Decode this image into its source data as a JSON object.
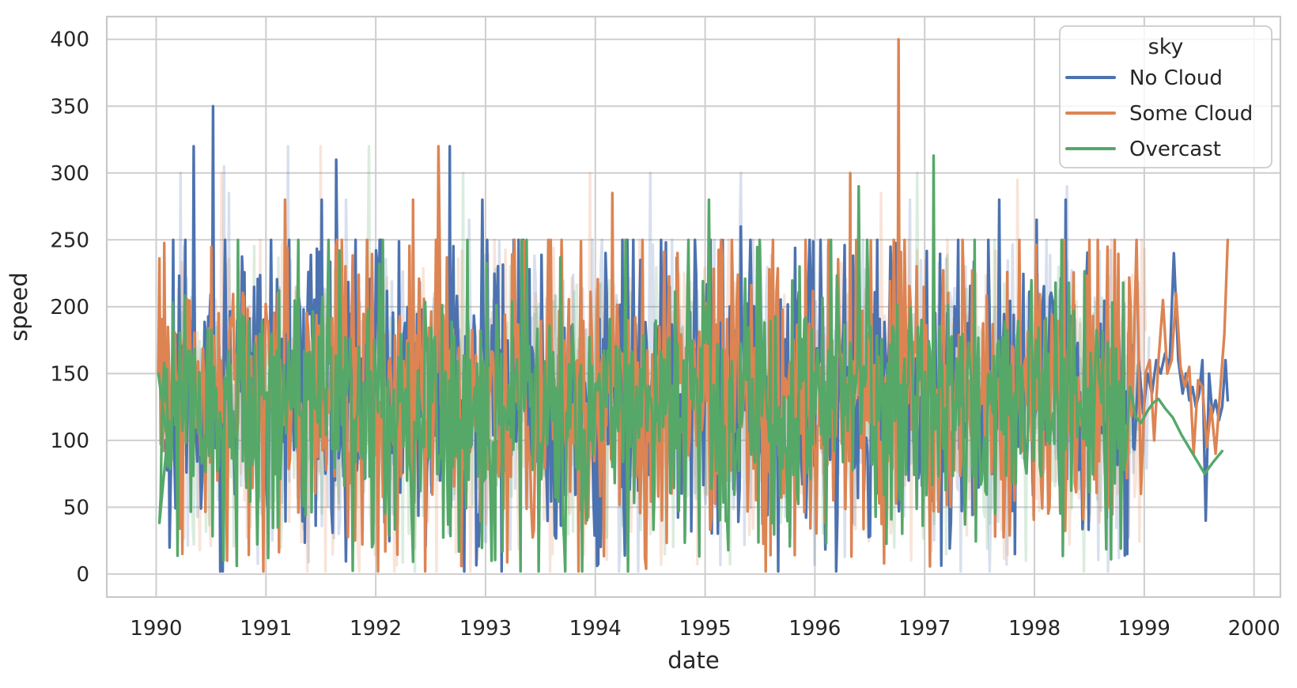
{
  "chart_data": {
    "type": "line",
    "title": "",
    "xlabel": "date",
    "ylabel": "speed",
    "xlim": [
      1989.55,
      2000.24
    ],
    "ylim": [
      -17.2,
      417
    ],
    "xticks": [
      1990,
      1991,
      1992,
      1993,
      1994,
      1995,
      1996,
      1997,
      1998,
      1999,
      2000
    ],
    "yticks": [
      0,
      50,
      100,
      150,
      200,
      250,
      300,
      350,
      400
    ],
    "grid": true,
    "grid_color": "#cecece",
    "spine_color": "#c9c9c9",
    "text_color": "#262626",
    "background": "#ffffff",
    "clip_ceiling": 250,
    "sample_step_years": 0.011,
    "legend": {
      "title": "sky",
      "position": "upper right",
      "entries": [
        {
          "label": "No Cloud",
          "color": "#4c72b0"
        },
        {
          "label": "Some Cloud",
          "color": "#dd8452"
        },
        {
          "label": "Overcast",
          "color": "#55a868"
        }
      ]
    },
    "series": [
      {
        "name": "No Cloud",
        "color": "#4c72b0",
        "opacity": 1,
        "seed": 11,
        "dense_start": 1990.1,
        "dense_end": 1998.92,
        "mean": 139,
        "std": 54,
        "p_low_dip": 0.025,
        "low_dip_range": [
          5,
          55
        ],
        "head": [
          [
            1990.08,
            100
          ]
        ],
        "spikes": [
          [
            1990.16,
            250
          ],
          [
            1990.34,
            320
          ],
          [
            1990.52,
            350
          ],
          [
            1991.51,
            280
          ],
          [
            1991.64,
            310
          ],
          [
            1992.67,
            320
          ],
          [
            1992.97,
            280
          ],
          [
            1993.02,
            250
          ],
          [
            1994.35,
            250
          ],
          [
            1994.6,
            250
          ],
          [
            1995.32,
            260
          ],
          [
            1995.95,
            250
          ],
          [
            1996.05,
            250
          ],
          [
            1997.3,
            250
          ],
          [
            1997.68,
            280
          ],
          [
            1997.82,
            15
          ],
          [
            1998.02,
            265
          ],
          [
            1998.28,
            280
          ],
          [
            1998.85,
            15
          ]
        ],
        "tail": [
          [
            1998.95,
            160
          ],
          [
            1998.99,
            120
          ],
          [
            1999.03,
            150
          ],
          [
            1999.07,
            135
          ],
          [
            1999.11,
            160
          ],
          [
            1999.15,
            150
          ],
          [
            1999.19,
            165
          ],
          [
            1999.23,
            155
          ],
          [
            1999.27,
            240
          ],
          [
            1999.31,
            160
          ],
          [
            1999.35,
            135
          ],
          [
            1999.38,
            150
          ],
          [
            1999.41,
            130
          ],
          [
            1999.44,
            140
          ],
          [
            1999.47,
            125
          ],
          [
            1999.5,
            135
          ],
          [
            1999.53,
            160
          ],
          [
            1999.56,
            40
          ],
          [
            1999.59,
            150
          ],
          [
            1999.62,
            120
          ],
          [
            1999.65,
            130
          ],
          [
            1999.68,
            115
          ],
          [
            1999.71,
            125
          ],
          [
            1999.74,
            160
          ],
          [
            1999.76,
            130
          ]
        ]
      },
      {
        "name": "Some Cloud",
        "color": "#dd8452",
        "opacity": 1,
        "seed": 23,
        "dense_start": 1990.03,
        "dense_end": 1998.9,
        "mean": 133,
        "std": 52,
        "p_low_dip": 0.025,
        "low_dip_range": [
          5,
          55
        ],
        "head": [
          [
            1990.02,
            150
          ]
        ],
        "spikes": [
          [
            1991.17,
            280
          ],
          [
            1992.02,
            2
          ],
          [
            1992.34,
            280
          ],
          [
            1992.57,
            320
          ],
          [
            1992.78,
            6
          ],
          [
            1994.16,
            285
          ],
          [
            1994.45,
            12
          ],
          [
            1995.15,
            250
          ],
          [
            1996.32,
            300
          ],
          [
            1996.72,
            250
          ],
          [
            1996.76,
            400
          ],
          [
            1996.82,
            250
          ],
          [
            1997.35,
            250
          ],
          [
            1998.5,
            250
          ],
          [
            1998.58,
            250
          ]
        ],
        "tail": [
          [
            1998.93,
            250
          ],
          [
            1998.97,
            60
          ],
          [
            1999.01,
            150
          ],
          [
            1999.05,
            160
          ],
          [
            1999.09,
            100
          ],
          [
            1999.13,
            160
          ],
          [
            1999.17,
            205
          ],
          [
            1999.21,
            150
          ],
          [
            1999.25,
            160
          ],
          [
            1999.29,
            210
          ],
          [
            1999.33,
            155
          ],
          [
            1999.37,
            140
          ],
          [
            1999.41,
            155
          ],
          [
            1999.45,
            90
          ],
          [
            1999.49,
            145
          ],
          [
            1999.53,
            140
          ],
          [
            1999.57,
            95
          ],
          [
            1999.61,
            125
          ],
          [
            1999.65,
            90
          ],
          [
            1999.69,
            135
          ],
          [
            1999.73,
            180
          ],
          [
            1999.76,
            250
          ]
        ]
      },
      {
        "name": "Overcast",
        "color": "#55a868",
        "opacity": 1,
        "seed": 37,
        "dense_start": 1990.03,
        "dense_end": 1998.84,
        "mean": 127,
        "std": 45,
        "p_low_dip": 0.03,
        "low_dip_range": [
          5,
          50
        ],
        "head": [
          [
            1990.02,
            150
          ],
          [
            1990.1,
            100
          ]
        ],
        "spikes": [
          [
            1990.74,
            250
          ],
          [
            1991.3,
            250
          ],
          [
            1992.06,
            250
          ],
          [
            1993.33,
            250
          ],
          [
            1993.48,
            2
          ],
          [
            1994.28,
            250
          ],
          [
            1994.85,
            250
          ],
          [
            1995.04,
            280
          ],
          [
            1995.5,
            250
          ],
          [
            1996.15,
            250
          ],
          [
            1996.4,
            290
          ],
          [
            1996.48,
            250
          ],
          [
            1997.08,
            313
          ],
          [
            1997.45,
            250
          ],
          [
            1998.25,
            250
          ]
        ],
        "tail": [
          [
            1998.87,
            140
          ],
          [
            1998.92,
            118
          ],
          [
            1998.97,
            113
          ],
          [
            1999.03,
            122
          ],
          [
            1999.08,
            128
          ],
          [
            1999.13,
            131
          ],
          [
            1999.19,
            124
          ],
          [
            1999.26,
            117
          ],
          [
            1999.34,
            104
          ],
          [
            1999.42,
            93
          ],
          [
            1999.5,
            82
          ],
          [
            1999.55,
            75
          ],
          [
            1999.63,
            84
          ],
          [
            1999.71,
            92
          ]
        ]
      }
    ],
    "faint_series": [
      {
        "name": "No Cloud (faint)",
        "color": "#4c72b0",
        "opacity": 0.22,
        "seed": 101,
        "dense_start": 1990.2,
        "dense_end": 1999.05,
        "mean": 138,
        "std": 55,
        "p_low_dip": 0.03,
        "low_dip_range": [
          5,
          55
        ],
        "head": [],
        "spikes": [
          [
            1990.22,
            300
          ],
          [
            1990.62,
            305
          ],
          [
            1990.66,
            285
          ],
          [
            1991.2,
            320
          ],
          [
            1991.73,
            280
          ],
          [
            1992.85,
            265
          ],
          [
            1994.5,
            300
          ],
          [
            1995.33,
            300
          ],
          [
            1996.87,
            280
          ],
          [
            1998.3,
            290
          ]
        ],
        "tail": []
      },
      {
        "name": "Some Cloud (faint)",
        "color": "#dd8452",
        "opacity": 0.22,
        "seed": 103,
        "dense_start": 1990.2,
        "dense_end": 1999.02,
        "mean": 134,
        "std": 53,
        "p_low_dip": 0.03,
        "low_dip_range": [
          5,
          55
        ],
        "head": [],
        "spikes": [
          [
            1990.6,
            300
          ],
          [
            1991.5,
            320
          ],
          [
            1993.95,
            300
          ],
          [
            1996.6,
            285
          ],
          [
            1997.85,
            295
          ],
          [
            1998.98,
            250
          ]
        ],
        "tail": []
      },
      {
        "name": "Overcast (faint)",
        "color": "#55a868",
        "opacity": 0.22,
        "seed": 107,
        "dense_start": 1990.2,
        "dense_end": 1998.95,
        "mean": 128,
        "std": 46,
        "p_low_dip": 0.03,
        "low_dip_range": [
          5,
          50
        ],
        "head": [],
        "spikes": [
          [
            1991.94,
            320
          ],
          [
            1992.8,
            300
          ],
          [
            1996.93,
            300
          ]
        ],
        "tail": []
      }
    ]
  }
}
